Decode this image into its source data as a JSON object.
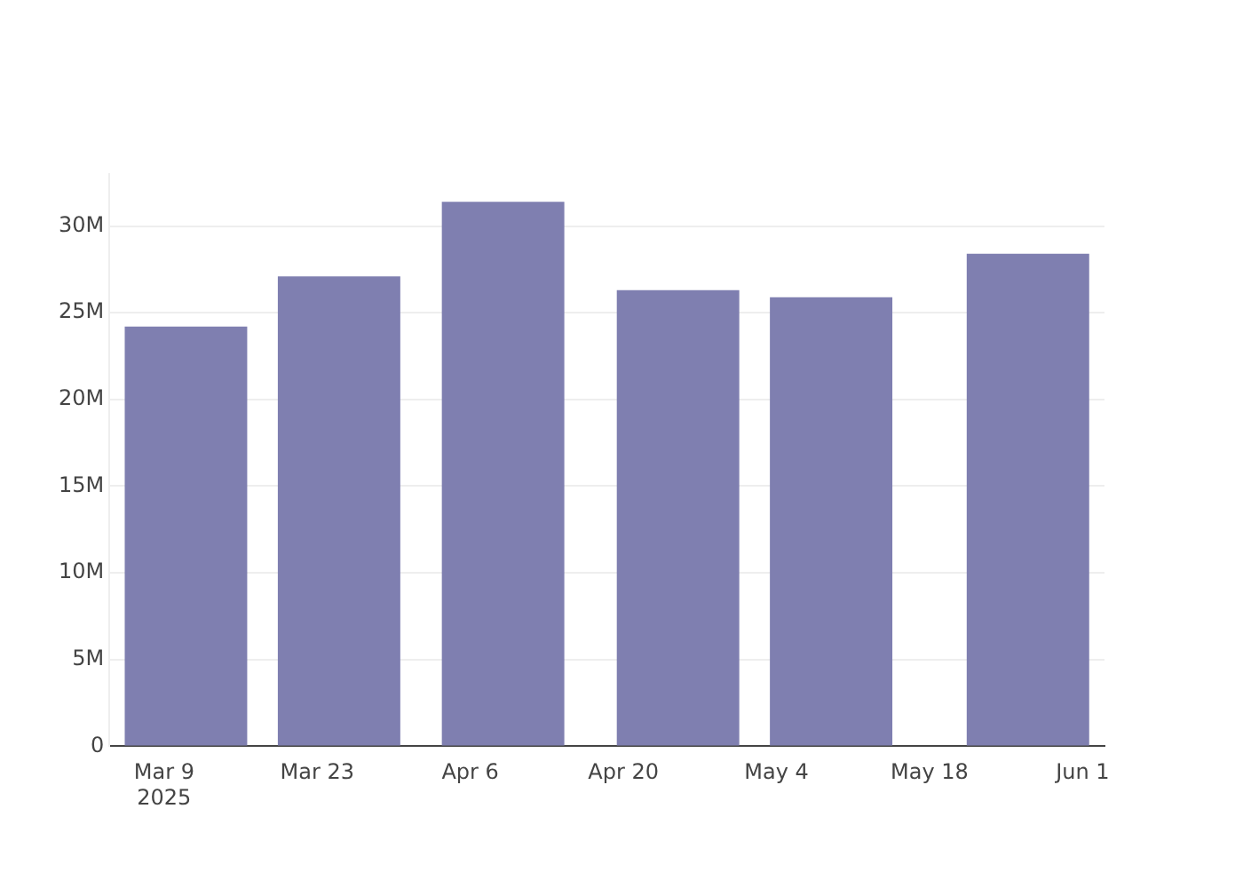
{
  "chart_data": {
    "type": "bar",
    "x": [
      "2025-03-11",
      "2025-03-25",
      "2025-04-09",
      "2025-04-25",
      "2025-05-09",
      "2025-05-27"
    ],
    "values": [
      24.2,
      27.1,
      31.4,
      26.3,
      25.9,
      28.4
    ],
    "color": "#7f7fb0",
    "xlim": [
      "2025-03-04",
      "2025-06-03"
    ],
    "xticks": [
      {
        "value": "2025-03-09",
        "label": "Mar 9\n2025"
      },
      {
        "value": "2025-03-23",
        "label": "Mar 23"
      },
      {
        "value": "2025-04-06",
        "label": "Apr 6"
      },
      {
        "value": "2025-04-20",
        "label": "Apr 20"
      },
      {
        "value": "2025-05-04",
        "label": "May 4"
      },
      {
        "value": "2025-05-18",
        "label": "May 18"
      },
      {
        "value": "2025-06-01",
        "label": "Jun 1"
      }
    ],
    "yticks": [
      {
        "value": 0,
        "label": "0"
      },
      {
        "value": 5,
        "label": "5M"
      },
      {
        "value": 10,
        "label": "10M"
      },
      {
        "value": 15,
        "label": "15M"
      },
      {
        "value": 20,
        "label": "20M"
      },
      {
        "value": 25,
        "label": "25M"
      },
      {
        "value": 30,
        "label": "30M"
      }
    ],
    "ylim": [
      0,
      33
    ],
    "grid": "y"
  }
}
